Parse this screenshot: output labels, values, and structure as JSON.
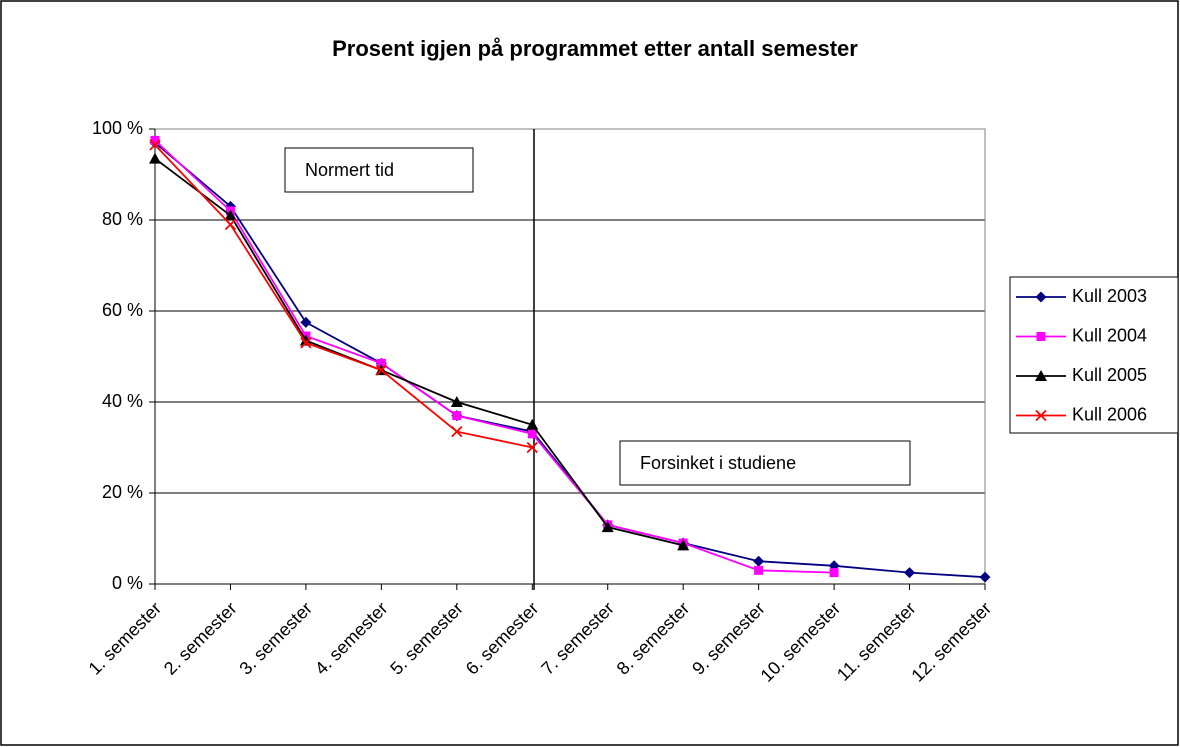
{
  "chart_data": {
    "type": "line",
    "title": "Prosent igjen på programmet etter antall semester",
    "categories": [
      "1. semester",
      "2. semester",
      "3. semester",
      "4. semester",
      "5. semester",
      "6. semester",
      "7. semester",
      "8. semester",
      "9. semester",
      "10. semester",
      "11. semester",
      "12. semester"
    ],
    "series": [
      {
        "name": "Kull 2003",
        "color": "#000080",
        "marker": "diamond",
        "values": [
          97,
          83,
          57.5,
          48.5,
          37,
          33.5,
          13,
          9,
          5,
          4,
          2.5,
          1.5
        ]
      },
      {
        "name": "Kull 2004",
        "color": "#ff00ff",
        "marker": "square",
        "values": [
          97.5,
          82,
          54.5,
          48.5,
          37,
          33,
          13,
          9,
          3,
          2.5,
          null,
          null
        ]
      },
      {
        "name": "Kull 2005",
        "color": "#000000",
        "marker": "triangle",
        "values": [
          93.5,
          81,
          53.5,
          47,
          40,
          35,
          12.5,
          8.5,
          null,
          null,
          null,
          null
        ]
      },
      {
        "name": "Kull 2006",
        "color": "#ff0000",
        "marker": "x",
        "values": [
          96.5,
          79,
          53,
          47,
          33.5,
          30,
          null,
          null,
          null,
          null,
          null,
          null
        ]
      }
    ],
    "ylim": [
      0,
      100
    ],
    "yticks": [
      {
        "value": 0,
        "label": "0 %"
      },
      {
        "value": 20,
        "label": "20 %"
      },
      {
        "value": 40,
        "label": "40 %"
      },
      {
        "value": 60,
        "label": "60 %"
      },
      {
        "value": 80,
        "label": "80 %"
      },
      {
        "value": 100,
        "label": "100 %"
      }
    ],
    "grid": true,
    "legend": "right",
    "annotations": [
      {
        "text": "Normert tid"
      },
      {
        "text": "Forsinket i studiene"
      }
    ]
  }
}
